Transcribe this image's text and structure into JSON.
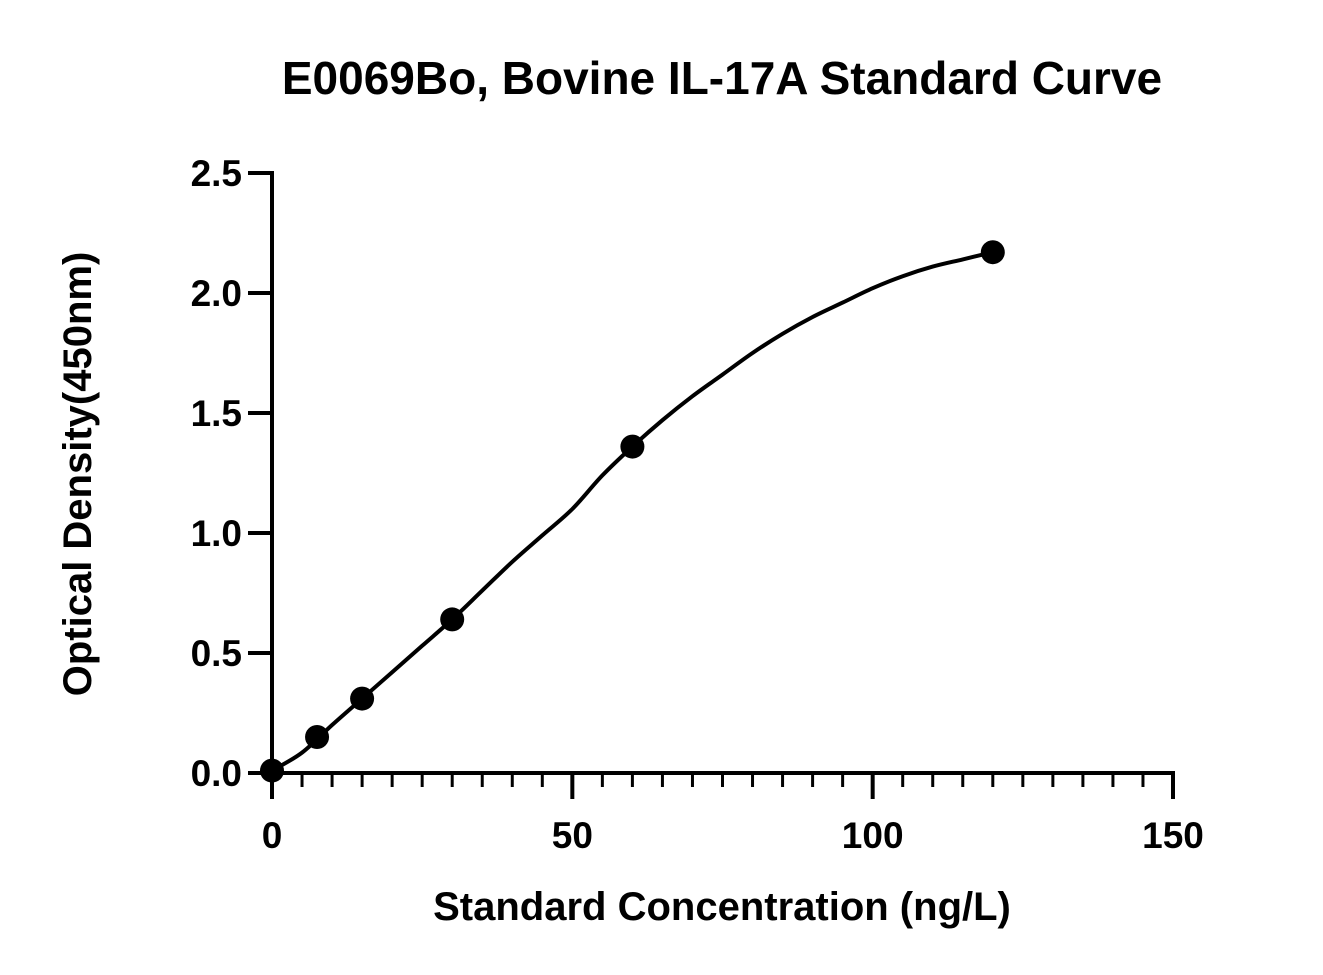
{
  "chart_data": {
    "type": "scatter",
    "title": "E0069Bo, Bovine IL-17A Standard Curve",
    "xlabel": "Standard Concentration (ng/L)",
    "ylabel": "Optical Density(450nm)",
    "xlim": [
      0,
      150
    ],
    "ylim": [
      0,
      2.5
    ],
    "x_ticks": [
      0,
      50,
      100,
      150
    ],
    "x_tick_labels": [
      "0",
      "50",
      "100",
      "150"
    ],
    "x_minor_step": 5,
    "y_ticks": [
      0,
      0.5,
      1.0,
      1.5,
      2.0,
      2.5
    ],
    "y_tick_labels": [
      "0.0",
      "0.5",
      "1.0",
      "1.5",
      "2.0",
      "2.5"
    ],
    "grid": false,
    "legend": "none",
    "series": [
      {
        "x": [
          0,
          7.5,
          15,
          30,
          60,
          120
        ],
        "y": [
          0.01,
          0.15,
          0.31,
          0.64,
          1.36,
          2.17
        ]
      }
    ],
    "fit_curve": {
      "type": "four-parameter-logistic",
      "x": [
        0,
        5,
        10,
        15,
        20,
        25,
        30,
        35,
        40,
        45,
        50,
        55,
        60,
        65,
        70,
        75,
        80,
        85,
        90,
        95,
        100,
        105,
        110,
        115,
        120
      ],
      "y": [
        0.01,
        0.085,
        0.2,
        0.31,
        0.42,
        0.53,
        0.64,
        0.76,
        0.88,
        0.99,
        1.1,
        1.24,
        1.36,
        1.47,
        1.57,
        1.66,
        1.75,
        1.83,
        1.9,
        1.96,
        2.02,
        2.07,
        2.11,
        2.14,
        2.17
      ]
    },
    "colors": {
      "marker": "#000000",
      "line": "#000000",
      "axis": "#000000"
    }
  }
}
